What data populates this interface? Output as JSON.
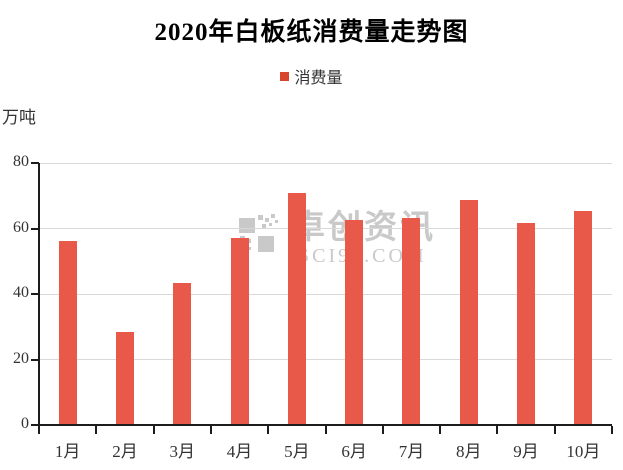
{
  "title": "2020年白板纸消费量走势图",
  "legend": {
    "label": "消费量",
    "marker_color": "#d8462f"
  },
  "unit_label": "万吨",
  "watermark": {
    "text_cn": "卓创资讯",
    "text_en": "SCI99.COM",
    "color": "#c9c9c9"
  },
  "chart_data": {
    "type": "bar",
    "title": "2020年白板纸消费量走势图",
    "series_name": "消费量",
    "categories": [
      "1月",
      "2月",
      "3月",
      "4月",
      "5月",
      "6月",
      "7月",
      "8月",
      "9月",
      "10月"
    ],
    "values": [
      56.1,
      28.3,
      43.3,
      57.1,
      70.8,
      62.7,
      63.2,
      68.7,
      61.6,
      65.3
    ],
    "xlabel": "",
    "ylabel": "万吨",
    "ylim": [
      0,
      80
    ],
    "yticks": [
      0,
      20,
      40,
      60,
      80
    ],
    "grid": true,
    "legend_position": "top-center",
    "bar_color": "#e8594a",
    "gridline_color": "#d9d9d9",
    "axis_color": "#1c1c1c",
    "tick_label_color": "#333333"
  }
}
